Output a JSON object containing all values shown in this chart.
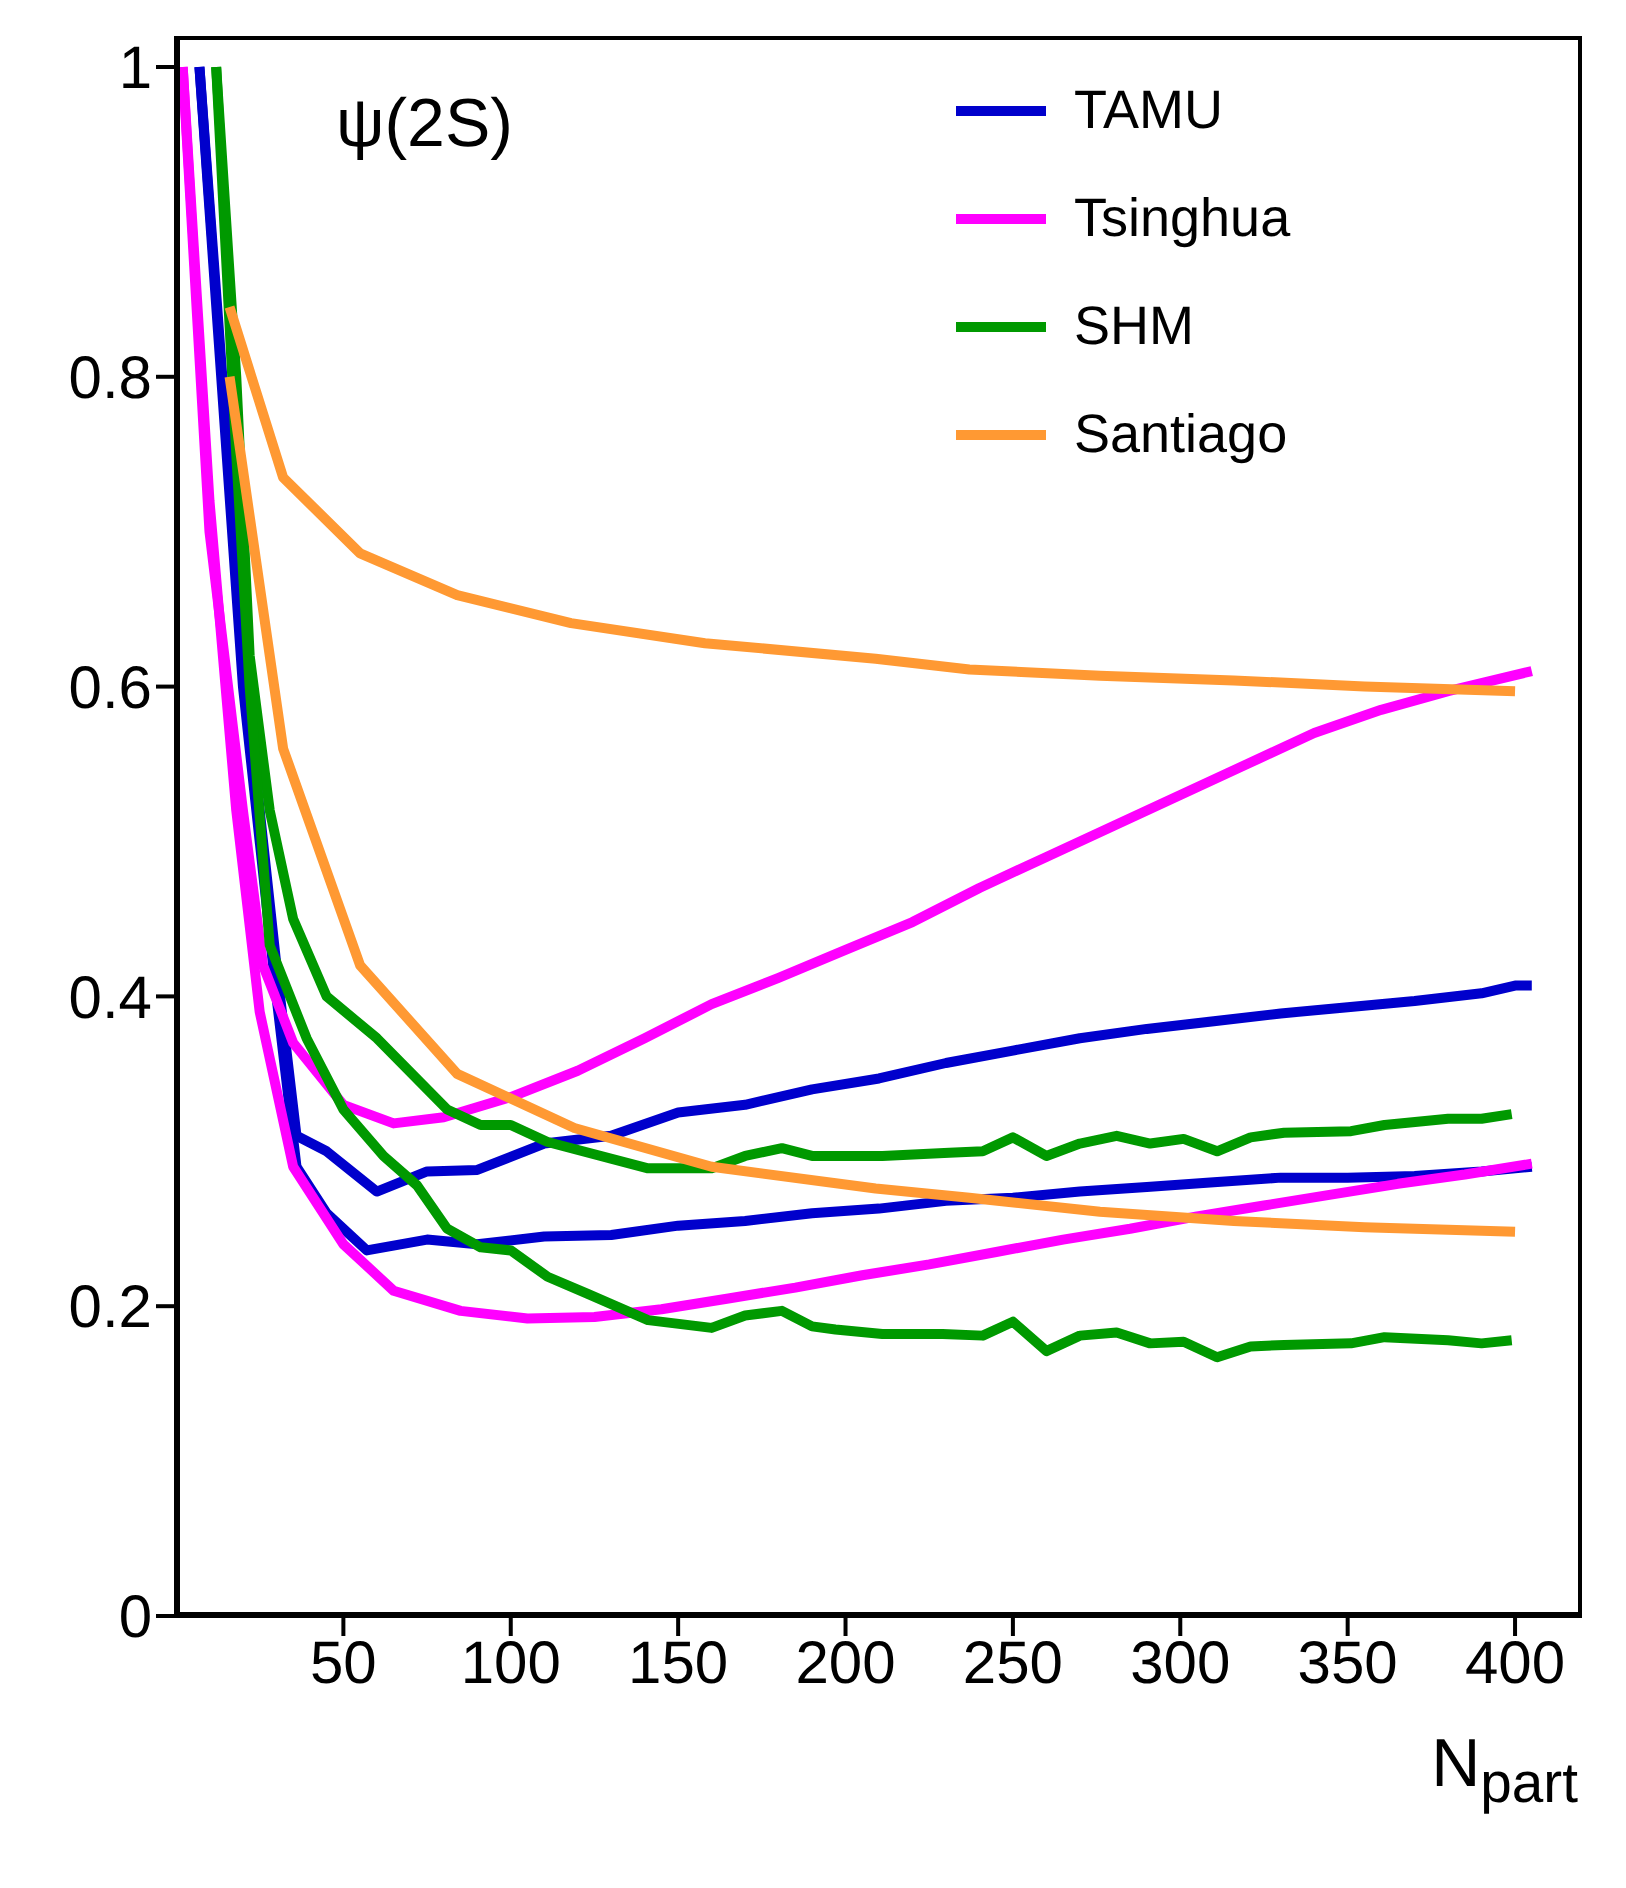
{
  "chart_data": {
    "type": "line",
    "annotations": [
      "ψ(2S)"
    ],
    "xlabel": "N$_{part}$",
    "xlim": [
      0,
      420
    ],
    "ylim": [
      0,
      1.02
    ],
    "xticks": [
      50,
      100,
      150,
      200,
      250,
      300,
      350,
      400
    ],
    "yticks": [
      0,
      0.2,
      0.4,
      0.6,
      0.8,
      1
    ],
    "legend": "top right",
    "marker": "none",
    "line_style": "solid",
    "grid": false,
    "series": [
      {
        "name": "TAMU",
        "color": "#0000cc",
        "x": [
          7,
          20,
          30,
          36,
          45,
          60,
          75,
          90,
          110,
          130,
          150,
          170,
          190,
          210,
          230,
          250,
          270,
          290,
          310,
          330,
          350,
          370,
          390,
          400,
          405
        ],
        "values": [
          1.0,
          0.62,
          0.42,
          0.31,
          0.3,
          0.274,
          0.287,
          0.288,
          0.305,
          0.31,
          0.325,
          0.33,
          0.34,
          0.347,
          0.357,
          0.365,
          0.373,
          0.379,
          0.384,
          0.389,
          0.393,
          0.397,
          0.402,
          0.407,
          0.407
        ]
      },
      {
        "color": "#0000cc",
        "x": [
          7,
          20,
          30,
          36,
          45,
          57,
          75,
          90,
          110,
          130,
          150,
          170,
          190,
          210,
          230,
          250,
          270,
          290,
          310,
          330,
          350,
          370,
          390,
          405
        ],
        "values": [
          1.0,
          0.6,
          0.4,
          0.29,
          0.26,
          0.236,
          0.243,
          0.24,
          0.245,
          0.246,
          0.252,
          0.255,
          0.26,
          0.263,
          0.268,
          0.27,
          0.274,
          0.277,
          0.28,
          0.283,
          0.283,
          0.284,
          0.287,
          0.29
        ]
      },
      {
        "name": "Tsinghua",
        "color": "#ff00ff",
        "x": [
          2,
          10,
          20,
          26,
          35,
          50,
          65,
          80,
          100,
          120,
          140,
          160,
          180,
          200,
          220,
          240,
          260,
          280,
          300,
          320,
          340,
          360,
          380,
          405
        ],
        "values": [
          1.0,
          0.7,
          0.52,
          0.42,
          0.37,
          0.33,
          0.318,
          0.322,
          0.335,
          0.352,
          0.373,
          0.395,
          0.412,
          0.43,
          0.448,
          0.47,
          0.49,
          0.51,
          0.53,
          0.55,
          0.57,
          0.585,
          0.597,
          0.61
        ]
      },
      {
        "color": "#ff00ff",
        "x": [
          2,
          10,
          18,
          25,
          35,
          50,
          65,
          85,
          105,
          125,
          145,
          165,
          185,
          205,
          225,
          245,
          265,
          285,
          305,
          325,
          345,
          365,
          385,
          405
        ],
        "values": [
          1.0,
          0.72,
          0.52,
          0.39,
          0.29,
          0.24,
          0.21,
          0.197,
          0.192,
          0.193,
          0.198,
          0.205,
          0.212,
          0.22,
          0.227,
          0.235,
          0.243,
          0.25,
          0.258,
          0.265,
          0.272,
          0.279,
          0.285,
          0.292
        ]
      },
      {
        "name": "SHM",
        "color": "#009900",
        "x": [
          12,
          18,
          22,
          28,
          35,
          45,
          60,
          81,
          91,
          100,
          111,
          141,
          160,
          170,
          181,
          190,
          197,
          211,
          231,
          241,
          250,
          260,
          270,
          281,
          291,
          301,
          311,
          321,
          331,
          351,
          361,
          380,
          390,
          399
        ],
        "values": [
          1.0,
          0.8,
          0.62,
          0.52,
          0.45,
          0.4,
          0.373,
          0.327,
          0.317,
          0.317,
          0.306,
          0.289,
          0.289,
          0.297,
          0.302,
          0.297,
          0.297,
          0.297,
          0.299,
          0.3,
          0.309,
          0.297,
          0.305,
          0.31,
          0.305,
          0.308,
          0.3,
          0.309,
          0.312,
          0.313,
          0.317,
          0.321,
          0.321,
          0.324
        ]
      },
      {
        "color": "#009900",
        "x": [
          12,
          18,
          22,
          28,
          39,
          50,
          62,
          72,
          81,
          91,
          100,
          111,
          123,
          141,
          160,
          170,
          181,
          190,
          197,
          211,
          229,
          241,
          250,
          260,
          270,
          281,
          291,
          301,
          311,
          321,
          331,
          351,
          361,
          380,
          390,
          399
        ],
        "values": [
          1.0,
          0.75,
          0.6,
          0.433,
          0.373,
          0.327,
          0.297,
          0.278,
          0.25,
          0.238,
          0.236,
          0.219,
          0.208,
          0.191,
          0.186,
          0.194,
          0.197,
          0.187,
          0.185,
          0.182,
          0.182,
          0.181,
          0.19,
          0.171,
          0.181,
          0.183,
          0.176,
          0.177,
          0.167,
          0.174,
          0.175,
          0.176,
          0.18,
          0.178,
          0.176,
          0.178
        ]
      },
      {
        "name": "Santiago",
        "color": "#ff9933",
        "x": [
          16,
          32,
          55,
          84,
          118,
          158,
          209,
          237,
          276,
          316,
          355,
          400
        ],
        "values": [
          0.845,
          0.735,
          0.686,
          0.659,
          0.641,
          0.628,
          0.618,
          0.611,
          0.607,
          0.604,
          0.6,
          0.597
        ]
      },
      {
        "color": "#ff9933",
        "x": [
          16,
          32,
          55,
          84,
          119,
          160,
          209,
          237,
          276,
          316,
          355,
          400
        ],
        "values": [
          0.8,
          0.56,
          0.42,
          0.35,
          0.315,
          0.29,
          0.276,
          0.27,
          0.261,
          0.255,
          0.251,
          0.248
        ]
      }
    ]
  }
}
